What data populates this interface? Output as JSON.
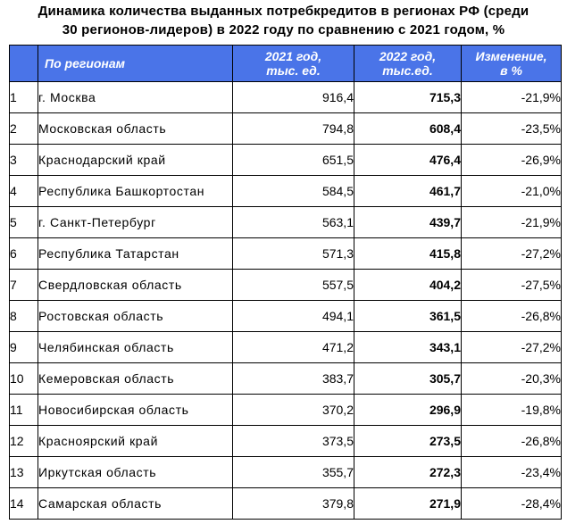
{
  "title_line1": "Динамика количества выданных потребкредитов в регионах РФ (среди",
  "title_line2": "30 регионов-лидеров) в 2022 году по сравнению с 2021 годом, %",
  "columns": {
    "region": "По регионам",
    "y2021_line1": "2021 год,",
    "y2021_line2": "тыс. ед.",
    "y2022_line1": "2022 год,",
    "y2022_line2": "тыс.ед.",
    "change_line1": "Изменение,",
    "change_line2": "в %"
  },
  "rows": [
    {
      "idx": "1",
      "region": "г. Москва",
      "v2021": "916,4",
      "v2022": "715,3",
      "change": "-21,9%"
    },
    {
      "idx": "2",
      "region": "Московская область",
      "v2021": "794,8",
      "v2022": "608,4",
      "change": "-23,5%"
    },
    {
      "idx": "3",
      "region": "Краснодарский край",
      "v2021": "651,5",
      "v2022": "476,4",
      "change": "-26,9%"
    },
    {
      "idx": "4",
      "region": "Республика Башкортостан",
      "v2021": "584,5",
      "v2022": "461,7",
      "change": "-21,0%"
    },
    {
      "idx": "5",
      "region": "г. Санкт-Петербург",
      "v2021": "563,1",
      "v2022": "439,7",
      "change": "-21,9%"
    },
    {
      "idx": "6",
      "region": "Республика Татарстан",
      "v2021": "571,3",
      "v2022": "415,8",
      "change": "-27,2%"
    },
    {
      "idx": "7",
      "region": "Свердловская область",
      "v2021": "557,5",
      "v2022": "404,2",
      "change": "-27,5%"
    },
    {
      "idx": "8",
      "region": "Ростовская область",
      "v2021": "494,1",
      "v2022": "361,5",
      "change": "-26,8%"
    },
    {
      "idx": "9",
      "region": "Челябинская область",
      "v2021": "471,2",
      "v2022": "343,1",
      "change": "-27,2%"
    },
    {
      "idx": "10",
      "region": "Кемеровская область",
      "v2021": "383,7",
      "v2022": "305,7",
      "change": "-20,3%"
    },
    {
      "idx": "11",
      "region": "Новосибирская область",
      "v2021": "370,2",
      "v2022": "296,9",
      "change": "-19,8%"
    },
    {
      "idx": "12",
      "region": "Красноярский край",
      "v2021": "373,5",
      "v2022": "273,5",
      "change": "-26,8%"
    },
    {
      "idx": "13",
      "region": "Иркутская область",
      "v2021": "355,7",
      "v2022": "272,3",
      "change": "-23,4%"
    },
    {
      "idx": "14",
      "region": "Самарская область",
      "v2021": "379,8",
      "v2022": "271,9",
      "change": "-28,4%"
    }
  ]
}
